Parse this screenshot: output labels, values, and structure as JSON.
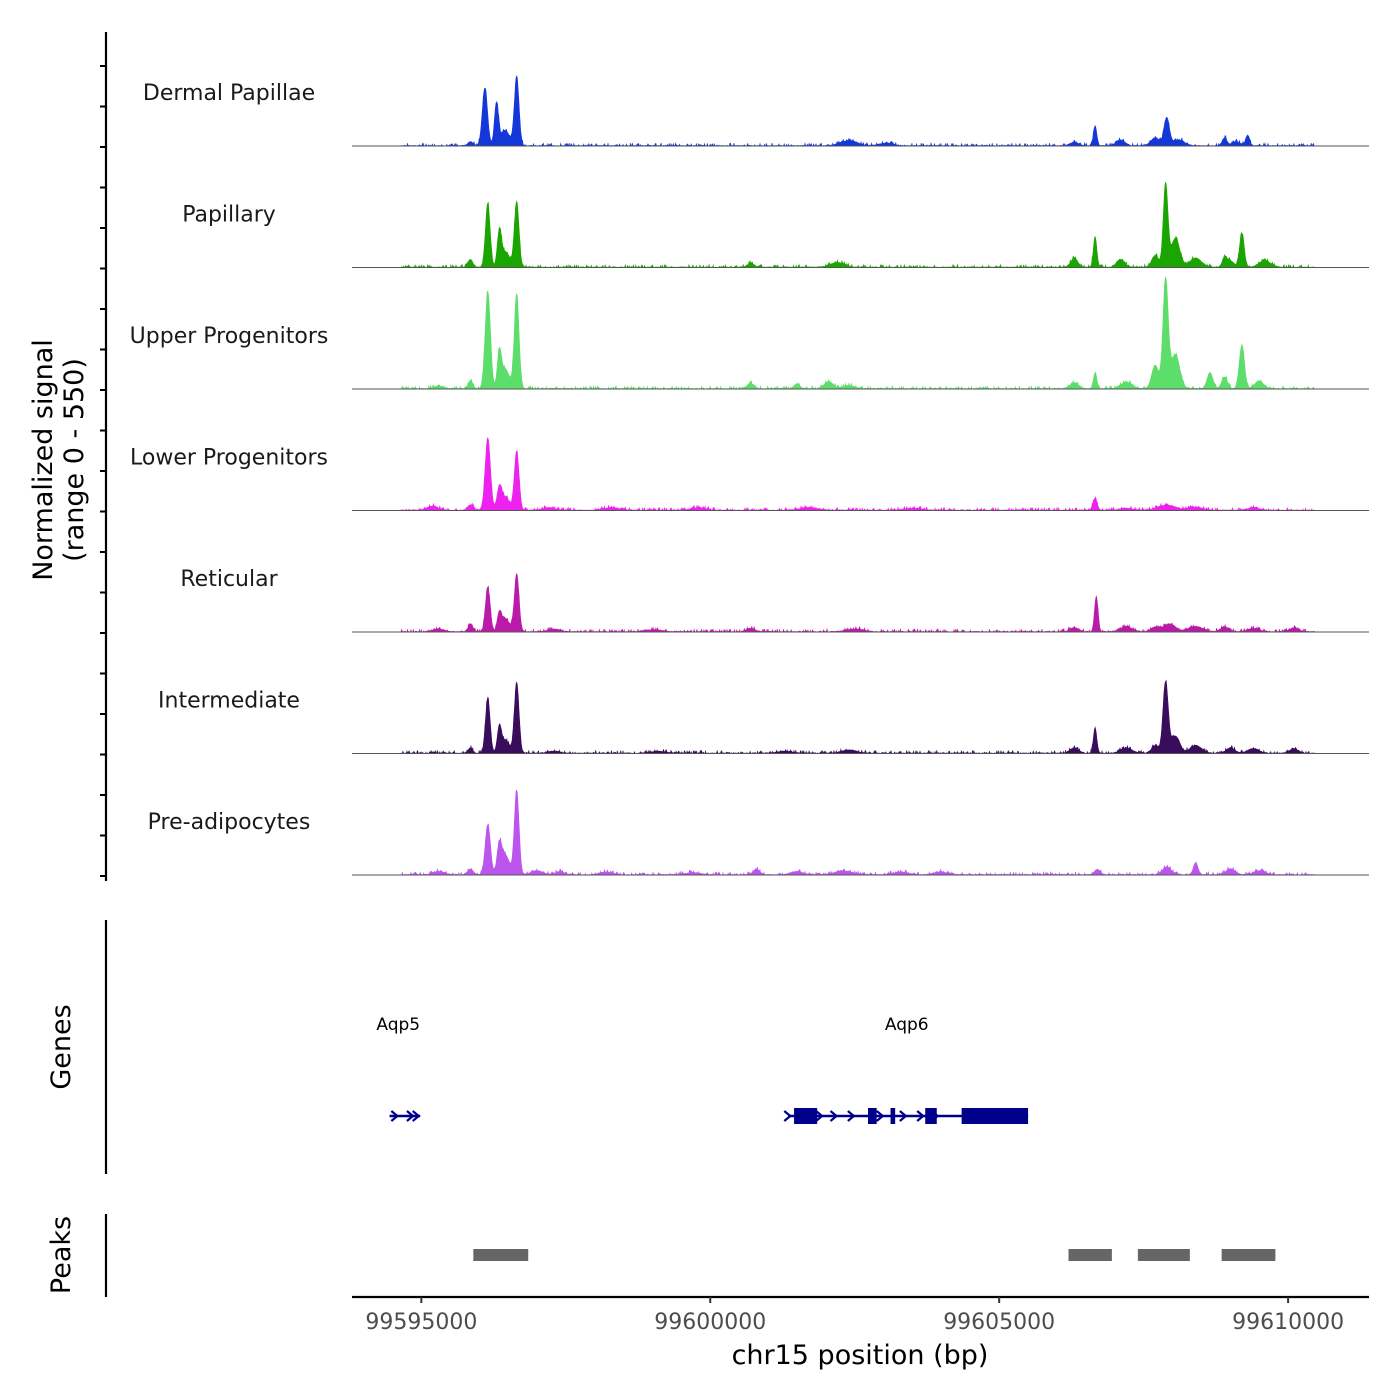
{
  "chart_data": {
    "type": "area",
    "title": "",
    "xlabel": "chr15 position (bp)",
    "ylabel": [
      "Normalized signal",
      "(range 0 - 550)"
    ],
    "y_range": [
      0,
      550
    ],
    "xlim": [
      99593800,
      99611400
    ],
    "x_ticks": [
      99595000,
      99600000,
      99605000,
      99610000
    ],
    "x_tick_labels": [
      "99595000",
      "99600000",
      "99605000",
      "99610000"
    ],
    "peaks_label": "Peaks",
    "genes_label": "Genes",
    "tracks": [
      {
        "name": "Dermal Papillae",
        "color": "#1438d8",
        "range": [
          99594650,
          99610450
        ],
        "peaks": [
          [
            99595850,
            30,
            90
          ],
          [
            99596100,
            440,
            90
          ],
          [
            99596300,
            320,
            70
          ],
          [
            99596650,
            530,
            80
          ],
          [
            99596450,
            120,
            150
          ],
          [
            99602400,
            40,
            280
          ],
          [
            99603050,
            20,
            250
          ],
          [
            99606300,
            25,
            150
          ],
          [
            99606660,
            150,
            60
          ],
          [
            99607100,
            45,
            150
          ],
          [
            99607700,
            60,
            150
          ],
          [
            99607900,
            210,
            90
          ],
          [
            99608100,
            45,
            200
          ],
          [
            99608900,
            60,
            80
          ],
          [
            99609300,
            80,
            70
          ],
          [
            99609100,
            30,
            150
          ]
        ]
      },
      {
        "name": "Papillary",
        "color": "#1ba500",
        "range": [
          99594650,
          99610450
        ],
        "peaks": [
          [
            99595850,
            60,
            80
          ],
          [
            99596150,
            490,
            80
          ],
          [
            99596350,
            250,
            70
          ],
          [
            99596650,
            500,
            80
          ],
          [
            99596450,
            120,
            150
          ],
          [
            99600700,
            30,
            120
          ],
          [
            99602200,
            35,
            250
          ],
          [
            99606300,
            70,
            120
          ],
          [
            99606660,
            230,
            60
          ],
          [
            99607100,
            60,
            140
          ],
          [
            99607700,
            90,
            120
          ],
          [
            99607880,
            630,
            80
          ],
          [
            99608050,
            220,
            150
          ],
          [
            99608400,
            70,
            200
          ],
          [
            99608900,
            70,
            80
          ],
          [
            99609000,
            50,
            120
          ],
          [
            99609200,
            260,
            80
          ],
          [
            99609600,
            50,
            200
          ]
        ]
      },
      {
        "name": "Upper Progenitors",
        "color": "#5ddd6a",
        "range": [
          99594650,
          99610450
        ],
        "peaks": [
          [
            99595300,
            20,
            150
          ],
          [
            99595850,
            60,
            80
          ],
          [
            99596150,
            740,
            90
          ],
          [
            99596350,
            250,
            70
          ],
          [
            99596650,
            720,
            80
          ],
          [
            99596450,
            150,
            150
          ],
          [
            99600700,
            40,
            120
          ],
          [
            99601500,
            35,
            100
          ],
          [
            99602050,
            55,
            150
          ],
          [
            99602400,
            25,
            200
          ],
          [
            99606300,
            45,
            150
          ],
          [
            99606660,
            120,
            60
          ],
          [
            99607200,
            50,
            200
          ],
          [
            99607700,
            180,
            120
          ],
          [
            99607880,
            830,
            90
          ],
          [
            99608050,
            260,
            150
          ],
          [
            99608650,
            120,
            100
          ],
          [
            99608900,
            90,
            100
          ],
          [
            99609200,
            330,
            90
          ],
          [
            99609500,
            60,
            150
          ]
        ]
      },
      {
        "name": "Lower Progenitors",
        "color": "#ee22ee",
        "range": [
          99594650,
          99610450
        ],
        "peaks": [
          [
            99595200,
            30,
            200
          ],
          [
            99595850,
            40,
            100
          ],
          [
            99596150,
            550,
            90
          ],
          [
            99596350,
            150,
            80
          ],
          [
            99596650,
            450,
            80
          ],
          [
            99596450,
            100,
            150
          ],
          [
            99597200,
            20,
            200
          ],
          [
            99598300,
            20,
            250
          ],
          [
            99599800,
            20,
            250
          ],
          [
            99601700,
            20,
            300
          ],
          [
            99603500,
            15,
            300
          ],
          [
            99606660,
            90,
            70
          ],
          [
            99607200,
            15,
            200
          ],
          [
            99607900,
            40,
            300
          ],
          [
            99608400,
            25,
            250
          ],
          [
            99609400,
            20,
            200
          ]
        ]
      },
      {
        "name": "Reticular",
        "color": "#bb1aa8",
        "range": [
          99594650,
          99610450
        ],
        "peaks": [
          [
            99595300,
            20,
            200
          ],
          [
            99595850,
            60,
            80
          ],
          [
            99596150,
            340,
            80
          ],
          [
            99596350,
            120,
            70
          ],
          [
            99596650,
            440,
            80
          ],
          [
            99596450,
            100,
            150
          ],
          [
            99597300,
            20,
            200
          ],
          [
            99599000,
            15,
            300
          ],
          [
            99600700,
            25,
            150
          ],
          [
            99602500,
            20,
            300
          ],
          [
            99606300,
            30,
            150
          ],
          [
            99606680,
            270,
            60
          ],
          [
            99607200,
            40,
            200
          ],
          [
            99607700,
            35,
            150
          ],
          [
            99607950,
            60,
            200
          ],
          [
            99608400,
            40,
            250
          ],
          [
            99608900,
            35,
            150
          ],
          [
            99609400,
            25,
            200
          ],
          [
            99610100,
            30,
            150
          ]
        ]
      },
      {
        "name": "Intermediate",
        "color": "#3a0c5c",
        "range": [
          99594650,
          99610450
        ],
        "peaks": [
          [
            99595850,
            40,
            80
          ],
          [
            99596150,
            420,
            80
          ],
          [
            99596350,
            180,
            70
          ],
          [
            99596650,
            540,
            80
          ],
          [
            99596450,
            100,
            150
          ],
          [
            99597300,
            15,
            200
          ],
          [
            99599100,
            15,
            250
          ],
          [
            99601300,
            15,
            250
          ],
          [
            99602400,
            25,
            250
          ],
          [
            99606300,
            40,
            150
          ],
          [
            99606660,
            190,
            60
          ],
          [
            99607200,
            40,
            200
          ],
          [
            99607700,
            60,
            120
          ],
          [
            99607880,
            540,
            90
          ],
          [
            99608050,
            130,
            150
          ],
          [
            99608400,
            60,
            200
          ],
          [
            99609000,
            40,
            150
          ],
          [
            99609400,
            35,
            200
          ],
          [
            99610100,
            35,
            150
          ]
        ]
      },
      {
        "name": "Pre-adipocytes",
        "color": "#bb55ee",
        "range": [
          99594650,
          99610450
        ],
        "peaks": [
          [
            99595300,
            25,
            200
          ],
          [
            99595850,
            40,
            100
          ],
          [
            99596150,
            380,
            90
          ],
          [
            99596350,
            200,
            80
          ],
          [
            99596650,
            640,
            80
          ],
          [
            99596450,
            150,
            150
          ],
          [
            99597000,
            30,
            200
          ],
          [
            99597400,
            25,
            150
          ],
          [
            99598200,
            20,
            200
          ],
          [
            99599700,
            15,
            250
          ],
          [
            99600800,
            40,
            120
          ],
          [
            99601500,
            25,
            200
          ],
          [
            99602300,
            30,
            300
          ],
          [
            99603300,
            20,
            250
          ],
          [
            99604000,
            20,
            250
          ],
          [
            99606700,
            40,
            100
          ],
          [
            99607900,
            60,
            150
          ],
          [
            99608400,
            90,
            80
          ],
          [
            99609000,
            45,
            150
          ],
          [
            99609500,
            30,
            200
          ]
        ]
      }
    ],
    "genes": [
      {
        "name": "Aqp5",
        "label_x": 99594600,
        "start": 99594450,
        "end": 99594980,
        "arrows": [
          99594550,
          99594820,
          99594920
        ],
        "exons": []
      },
      {
        "name": "Aqp6",
        "label_x": 99603400,
        "start": 99601350,
        "end": 99605500,
        "arrows": [
          99601350,
          99601900,
          99602150,
          99602450,
          99602950,
          99603350,
          99603650,
          99603900
        ],
        "exons": [
          [
            99601450,
            99601850
          ],
          [
            99602730,
            99602880
          ],
          [
            99603120,
            99603200
          ],
          [
            99603720,
            99603920
          ],
          [
            99604350,
            99605500
          ]
        ]
      }
    ],
    "peak_regions": [
      [
        99595900,
        99596850
      ],
      [
        99606200,
        99606950
      ],
      [
        99607400,
        99608300
      ],
      [
        99608850,
        99609780
      ]
    ]
  }
}
